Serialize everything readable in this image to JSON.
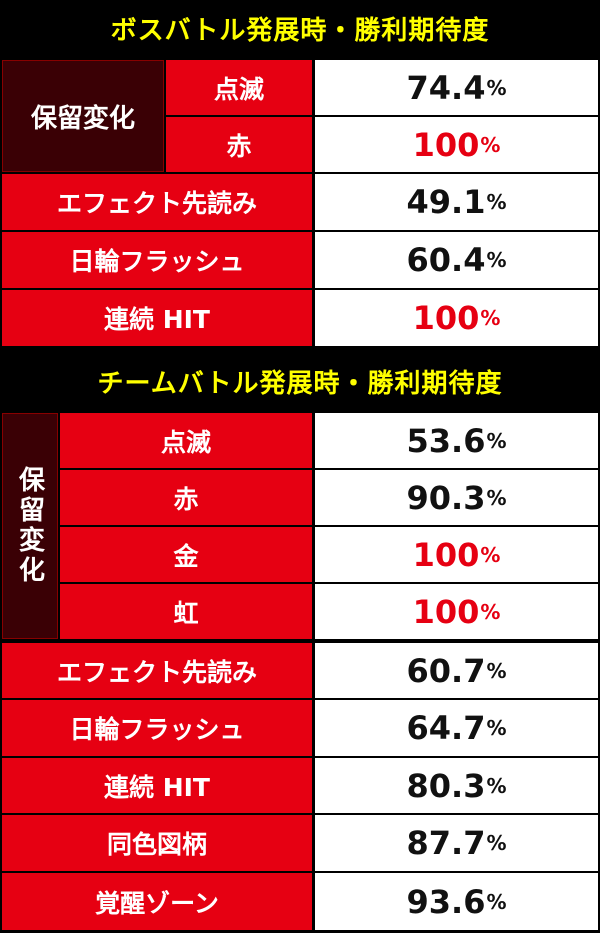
{
  "boss": {
    "title": "ボスバトル発展時・勝利期待度",
    "group_label": "保留変化",
    "rows": [
      {
        "label": "点滅",
        "value": "74.4",
        "unit": "%",
        "hot": false
      },
      {
        "label": "赤",
        "value": "100",
        "unit": "%",
        "hot": true
      },
      {
        "label": "エフェクト先読み",
        "value": "49.1",
        "unit": "%",
        "hot": false
      },
      {
        "label": "日輪フラッシュ",
        "value": "60.4",
        "unit": "%",
        "hot": false
      },
      {
        "label": "連続 HIT",
        "value": "100",
        "unit": "%",
        "hot": true
      }
    ]
  },
  "team": {
    "title": "チームバトル発展時・勝利期待度",
    "group_label": "保留変化",
    "rows": [
      {
        "label": "点滅",
        "value": "53.6",
        "unit": "%",
        "hot": false
      },
      {
        "label": "赤",
        "value": "90.3",
        "unit": "%",
        "hot": false
      },
      {
        "label": "金",
        "value": "100",
        "unit": "%",
        "hot": true
      },
      {
        "label": "虹",
        "value": "100",
        "unit": "%",
        "hot": true
      },
      {
        "label": "エフェクト先読み",
        "value": "60.7",
        "unit": "%",
        "hot": false
      },
      {
        "label": "日輪フラッシュ",
        "value": "64.7",
        "unit": "%",
        "hot": false
      },
      {
        "label": "連続 HIT",
        "value": "80.3",
        "unit": "%",
        "hot": false
      },
      {
        "label": "同色図柄",
        "value": "87.7",
        "unit": "%",
        "hot": false
      },
      {
        "label": "覚醒ゾーン",
        "value": "93.6",
        "unit": "%",
        "hot": false
      }
    ]
  }
}
